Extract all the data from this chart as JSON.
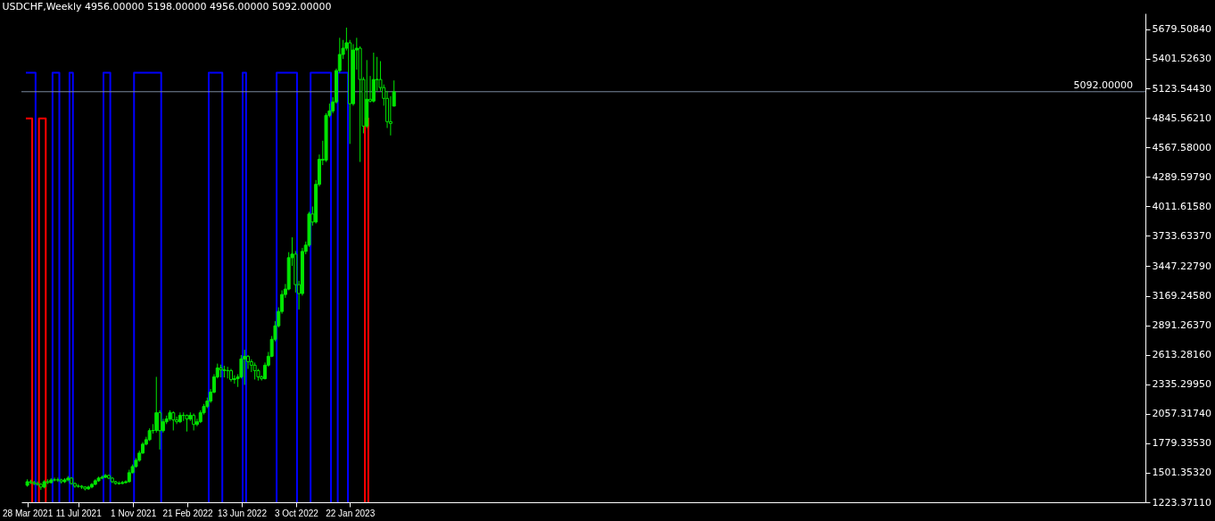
{
  "chart_data": {
    "type": "candlestick",
    "title": "USDCHF,Weekly  4956.00000 5198.00000 4956.00000 5092.00000",
    "color": "#00e600",
    "grid": false,
    "x": [
      "2021-03-28",
      "2021-04-04",
      "2021-04-11",
      "2021-04-18",
      "2021-04-25",
      "2021-05-02",
      "2021-05-09",
      "2021-05-16",
      "2021-05-23",
      "2021-05-30",
      "2021-06-06",
      "2021-06-13",
      "2021-06-20",
      "2021-06-27",
      "2021-07-04",
      "2021-07-11",
      "2021-07-18",
      "2021-07-25",
      "2021-08-01",
      "2021-08-08",
      "2021-08-15",
      "2021-08-22",
      "2021-08-29",
      "2021-09-05",
      "2021-09-12",
      "2021-09-19",
      "2021-09-26",
      "2021-10-03",
      "2021-10-10",
      "2021-10-17",
      "2021-10-24",
      "2021-10-31",
      "2021-11-07",
      "2021-11-14",
      "2021-11-21",
      "2021-11-28",
      "2021-12-05",
      "2021-12-12",
      "2021-12-19",
      "2021-12-26",
      "2022-01-02",
      "2022-01-09",
      "2022-01-16",
      "2022-01-23",
      "2022-01-30",
      "2022-02-06",
      "2022-02-13",
      "2022-02-20",
      "2022-02-27",
      "2022-03-06",
      "2022-03-13",
      "2022-03-20",
      "2022-03-27",
      "2022-04-03",
      "2022-04-10",
      "2022-04-17",
      "2022-04-24",
      "2022-05-01",
      "2022-05-08",
      "2022-05-15",
      "2022-05-22",
      "2022-05-29",
      "2022-06-05",
      "2022-06-12",
      "2022-06-19",
      "2022-06-26",
      "2022-07-03",
      "2022-07-10",
      "2022-07-17",
      "2022-07-24",
      "2022-07-31",
      "2022-08-07",
      "2022-08-14",
      "2022-08-21",
      "2022-08-28",
      "2022-09-04",
      "2022-09-11",
      "2022-09-18",
      "2022-09-25",
      "2022-10-02",
      "2022-10-09",
      "2022-10-16",
      "2022-10-23",
      "2022-10-30",
      "2022-11-06",
      "2022-11-13",
      "2022-11-20",
      "2022-11-27",
      "2022-12-04",
      "2022-12-11",
      "2022-12-18",
      "2022-12-25",
      "2023-01-01",
      "2023-01-08",
      "2023-01-15",
      "2023-01-22",
      "2023-01-29",
      "2023-02-05",
      "2023-02-12",
      "2023-02-19",
      "2023-02-26",
      "2023-03-05",
      "2023-03-12",
      "2023-03-19",
      "2023-03-26",
      "2023-04-02",
      "2023-04-09",
      "2023-04-16",
      "2023-04-23"
    ],
    "ohlc": [
      [
        1383,
        1440,
        1370,
        1417
      ],
      [
        1417,
        1435,
        1395,
        1409
      ],
      [
        1409,
        1425,
        1385,
        1400
      ],
      [
        1400,
        1420,
        1380,
        1392
      ],
      [
        1392,
        1405,
        1340,
        1367
      ],
      [
        1367,
        1430,
        1355,
        1417
      ],
      [
        1417,
        1440,
        1395,
        1409
      ],
      [
        1409,
        1450,
        1400,
        1434
      ],
      [
        1434,
        1455,
        1420,
        1434
      ],
      [
        1434,
        1455,
        1415,
        1434
      ],
      [
        1434,
        1445,
        1400,
        1417
      ],
      [
        1417,
        1450,
        1405,
        1434
      ],
      [
        1434,
        1470,
        1420,
        1451
      ],
      [
        1451,
        1460,
        1390,
        1400
      ],
      [
        1400,
        1410,
        1360,
        1375
      ],
      [
        1375,
        1395,
        1360,
        1375
      ],
      [
        1375,
        1385,
        1350,
        1367
      ],
      [
        1367,
        1375,
        1335,
        1350
      ],
      [
        1350,
        1380,
        1340,
        1367
      ],
      [
        1367,
        1405,
        1355,
        1392
      ],
      [
        1392,
        1440,
        1385,
        1426
      ],
      [
        1426,
        1465,
        1415,
        1451
      ],
      [
        1451,
        1475,
        1440,
        1459
      ],
      [
        1459,
        1490,
        1450,
        1476
      ],
      [
        1476,
        1485,
        1440,
        1451
      ],
      [
        1451,
        1460,
        1405,
        1417
      ],
      [
        1417,
        1425,
        1390,
        1400
      ],
      [
        1400,
        1420,
        1390,
        1400
      ],
      [
        1400,
        1425,
        1395,
        1409
      ],
      [
        1409,
        1430,
        1400,
        1417
      ],
      [
        1417,
        1530,
        1410,
        1502
      ],
      [
        1502,
        1580,
        1495,
        1560
      ],
      [
        1560,
        1640,
        1550,
        1619
      ],
      [
        1619,
        1710,
        1605,
        1687
      ],
      [
        1687,
        1790,
        1680,
        1771
      ],
      [
        1771,
        1840,
        1760,
        1813
      ],
      [
        1813,
        1920,
        1800,
        1898
      ],
      [
        1898,
        1960,
        1870,
        1900
      ],
      [
        1900,
        2405,
        1880,
        2067
      ],
      [
        2067,
        2090,
        1720,
        1898
      ],
      [
        1898,
        2010,
        1880,
        1982
      ],
      [
        1982,
        2040,
        1960,
        2008
      ],
      [
        2008,
        2090,
        1990,
        2067
      ],
      [
        2067,
        2080,
        1900,
        1999
      ],
      [
        1999,
        2030,
        1960,
        1982
      ],
      [
        1982,
        2070,
        1970,
        2042
      ],
      [
        2042,
        2070,
        1990,
        2042
      ],
      [
        2042,
        2050,
        1890,
        2008
      ],
      [
        2008,
        2070,
        1990,
        2042
      ],
      [
        2042,
        2060,
        1900,
        1957
      ],
      [
        1957,
        2010,
        1940,
        1982
      ],
      [
        1982,
        2090,
        1970,
        2067
      ],
      [
        2067,
        2150,
        2050,
        2126
      ],
      [
        2126,
        2210,
        2110,
        2177
      ],
      [
        2177,
        2290,
        2160,
        2261
      ],
      [
        2261,
        2430,
        2250,
        2405
      ],
      [
        2405,
        2530,
        2390,
        2489
      ],
      [
        2489,
        2520,
        2400,
        2472
      ],
      [
        2472,
        2510,
        2400,
        2464
      ],
      [
        2464,
        2500,
        2390,
        2464
      ],
      [
        2464,
        2480,
        2360,
        2380
      ],
      [
        2380,
        2420,
        2340,
        2388
      ],
      [
        2388,
        2430,
        2310,
        2405
      ],
      [
        2405,
        2610,
        2390,
        2574
      ],
      [
        2574,
        2660,
        2330,
        2599
      ],
      [
        2599,
        2610,
        2480,
        2548
      ],
      [
        2548,
        2570,
        2450,
        2515
      ],
      [
        2515,
        2540,
        2380,
        2464
      ],
      [
        2464,
        2480,
        2370,
        2405
      ],
      [
        2405,
        2420,
        2370,
        2388
      ],
      [
        2388,
        2540,
        2380,
        2515
      ],
      [
        2515,
        2640,
        2500,
        2599
      ],
      [
        2599,
        2790,
        2590,
        2759
      ],
      [
        2759,
        2930,
        2740,
        2886
      ],
      [
        2886,
        3060,
        2870,
        3021
      ],
      [
        3021,
        3220,
        3000,
        3181
      ],
      [
        3181,
        3280,
        3150,
        3232
      ],
      [
        3232,
        3580,
        3220,
        3528
      ],
      [
        3528,
        3720,
        3450,
        3562
      ],
      [
        3562,
        3590,
        3200,
        3274
      ],
      [
        3274,
        3310,
        3040,
        3190
      ],
      [
        3190,
        3620,
        3170,
        3587
      ],
      [
        3587,
        3680,
        3560,
        3646
      ],
      [
        3646,
        3960,
        3630,
        3940
      ],
      [
        3940,
        4010,
        3830,
        3864
      ],
      [
        3864,
        4260,
        3850,
        4219
      ],
      [
        4219,
        4500,
        4200,
        4455
      ],
      [
        4455,
        4630,
        4400,
        4447
      ],
      [
        4447,
        4890,
        4430,
        4869
      ],
      [
        4869,
        4980,
        4850,
        4911
      ],
      [
        4911,
        5040,
        4890,
        4996
      ],
      [
        4996,
        5310,
        4980,
        5291
      ],
      [
        5291,
        5600,
        5270,
        5443
      ],
      [
        5443,
        5580,
        5400,
        5502
      ],
      [
        5502,
        5696,
        5480,
        5553
      ],
      [
        5553,
        5580,
        4600,
        4979
      ],
      [
        4979,
        5540,
        4960,
        5485
      ],
      [
        5485,
        5600,
        5300,
        5502
      ],
      [
        5502,
        5520,
        4430,
        5207
      ],
      [
        5207,
        5230,
        4700,
        4768
      ],
      [
        4768,
        5390,
        4750,
        5021
      ],
      [
        5021,
        5240,
        4990,
        5004
      ],
      [
        5004,
        5460,
        4990,
        5207
      ],
      [
        5207,
        5420,
        5100,
        5207
      ],
      [
        5207,
        5380,
        5100,
        5131
      ],
      [
        5131,
        5160,
        4960,
        5029
      ],
      [
        5029,
        5100,
        4750,
        4810
      ],
      [
        4810,
        5050,
        4680,
        4793
      ],
      [
        4956,
        5198,
        4956,
        5092
      ]
    ],
    "xlim": [
      "2021-03-25",
      "2027-07-11"
    ],
    "xticks": [
      {
        "value": "2021-03-28",
        "label": "28 Mar 2021"
      },
      {
        "value": "2021-07-11",
        "label": "11 Jul 2021"
      },
      {
        "value": "2021-11-01",
        "label": "1 Nov 2021"
      },
      {
        "value": "2022-02-21",
        "label": "21 Feb 2022"
      },
      {
        "value": "2022-06-13",
        "label": "13 Jun 2022"
      },
      {
        "value": "2022-10-03",
        "label": "3 Oct 2022"
      },
      {
        "value": "2023-01-22",
        "label": "22 Jan 2023"
      }
    ],
    "ylim": [
      1223.3711,
      5830
    ],
    "yticks": [
      {
        "value": 1223.3711,
        "label": "1223.37110"
      },
      {
        "value": 1501.3532,
        "label": "1501.35320"
      },
      {
        "value": 1779.3353,
        "label": "1779.33530"
      },
      {
        "value": 2057.3174,
        "label": "2057.31740"
      },
      {
        "value": 2335.2995,
        "label": "2335.29950"
      },
      {
        "value": 2613.2816,
        "label": "2613.28160"
      },
      {
        "value": 2891.2637,
        "label": "2891.26370"
      },
      {
        "value": 3169.2458,
        "label": "3169.24580"
      },
      {
        "value": 3447.2279,
        "label": "3447.22790"
      },
      {
        "value": 3733.6337,
        "label": "3733.63370"
      },
      {
        "value": 4011.6158,
        "label": "4011.61580"
      },
      {
        "value": 4289.5979,
        "label": "4289.59790"
      },
      {
        "value": 4567.58,
        "label": "4567.58000"
      },
      {
        "value": 4845.5621,
        "label": "4845.56210"
      },
      {
        "value": 5123.5443,
        "label": "5123.54430"
      },
      {
        "value": 5401.5263,
        "label": "5401.52630"
      },
      {
        "value": 5679.5084,
        "label": "5679.50840"
      }
    ],
    "series": [
      {
        "type": "line",
        "color": "#0000ff",
        "x": [
          "2021-03-25",
          "2021-04-14",
          "2021-04-14",
          null,
          "2021-05-19",
          "2021-05-19",
          "2021-06-02",
          "2021-06-02",
          null,
          "2021-06-23",
          "2021-06-23",
          "2021-06-30",
          "2021-06-30",
          null,
          "2021-09-01",
          "2021-09-01",
          "2021-09-15",
          "2021-09-15",
          null,
          "2021-11-03",
          "2021-11-03",
          "2021-12-29",
          "2021-12-29",
          null,
          "2022-04-06",
          "2022-04-06",
          "2022-05-04",
          "2022-05-04",
          null,
          "2022-06-15",
          "2022-06-15",
          "2022-06-22",
          "2022-06-22",
          null,
          "2022-08-24",
          "2022-08-24",
          "2022-10-05",
          "2022-10-05",
          null,
          "2022-11-02",
          "2022-11-02",
          "2022-12-14",
          "2022-12-14",
          null,
          "2022-12-28",
          "2022-12-28",
          "2023-01-18",
          "2023-01-18"
        ],
        "values": [
          5270,
          5270,
          1223.3711,
          null,
          1223.3711,
          5270,
          5270,
          1223.3711,
          null,
          1223.3711,
          5270,
          5270,
          1223.3711,
          null,
          1223.3711,
          5270,
          5270,
          1223.3711,
          null,
          1223.3711,
          5270,
          5270,
          1223.3711,
          null,
          1223.3711,
          5270,
          5270,
          1223.3711,
          null,
          1223.3711,
          5270,
          5270,
          1223.3711,
          null,
          1223.3711,
          5270,
          5270,
          1223.3711,
          null,
          1223.3711,
          5270,
          5270,
          1223.3711,
          null,
          1223.3711,
          5270,
          5270,
          1223.3711
        ]
      },
      {
        "type": "line",
        "color": "#ff0000",
        "x": [
          "2021-03-25",
          "2021-04-07",
          "2021-04-07",
          null,
          "2021-04-21",
          "2021-04-21",
          "2021-05-05",
          "2021-05-05",
          null,
          "2023-02-22",
          "2023-02-22",
          "2023-03-01",
          "2023-03-01"
        ],
        "values": [
          4840,
          4840,
          1223.3711,
          null,
          1223.3711,
          4840,
          4840,
          1223.3711,
          null,
          1223.3711,
          4840,
          4840,
          1223.3711
        ]
      }
    ],
    "ref_lines": [
      {
        "axis": "y",
        "value": 5092,
        "label": "5092.00000",
        "color": "#7a8aa0"
      }
    ]
  }
}
